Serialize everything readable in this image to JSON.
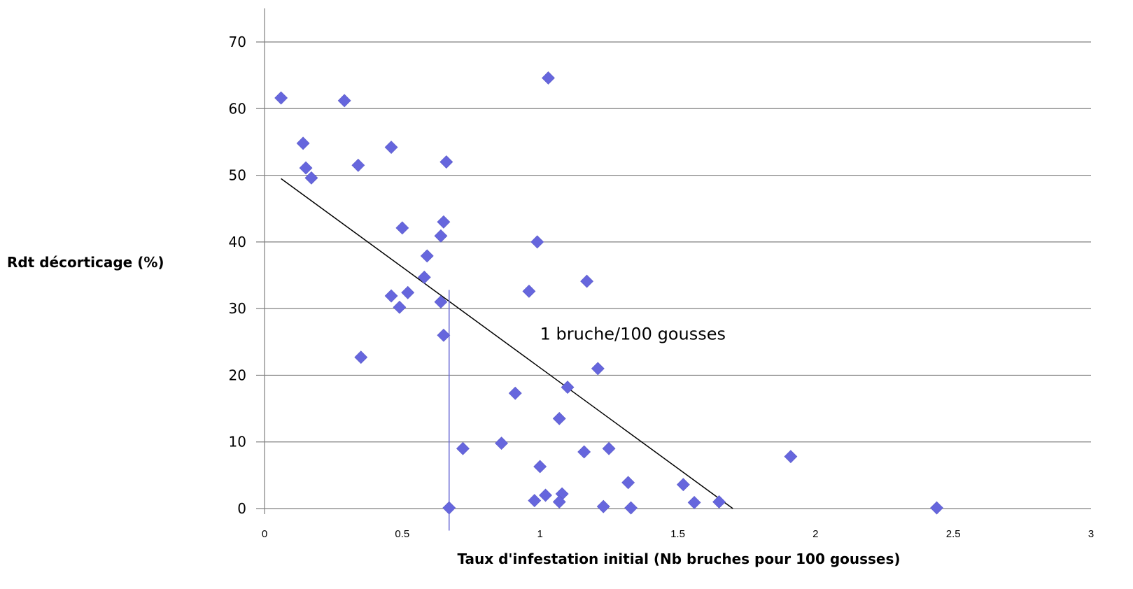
{
  "chart_data": {
    "type": "scatter",
    "title": "",
    "xlabel": "Taux d'infestation initial (Nb bruches pour 100 gousses)",
    "ylabel": "Rdt décorticage (%)",
    "xlim": [
      0,
      3
    ],
    "ylim": [
      0,
      70
    ],
    "x_ticks": [
      0,
      0.5,
      1,
      1.5,
      2,
      2.5,
      3
    ],
    "x_tick_labels": [
      "0",
      "0.5",
      "1",
      "1.5",
      "2",
      "2.5",
      "3"
    ],
    "y_ticks": [
      0,
      10,
      20,
      30,
      40,
      50,
      60,
      70
    ],
    "y_tick_labels": [
      "0",
      "10",
      "20",
      "30",
      "40",
      "50",
      "60",
      "70"
    ],
    "grid": "horizontal",
    "marker": "diamond",
    "colors": {
      "points": "#6666dd",
      "trendline": "#000000",
      "threshold_line": "#6b6bd6",
      "grid": "#808080"
    },
    "points": [
      {
        "x": 0.06,
        "y": 61.6
      },
      {
        "x": 0.29,
        "y": 61.2
      },
      {
        "x": 1.03,
        "y": 64.6
      },
      {
        "x": 0.14,
        "y": 54.8
      },
      {
        "x": 0.15,
        "y": 51.1
      },
      {
        "x": 0.17,
        "y": 49.6
      },
      {
        "x": 0.34,
        "y": 51.5
      },
      {
        "x": 0.46,
        "y": 54.2
      },
      {
        "x": 0.66,
        "y": 52.0
      },
      {
        "x": 0.5,
        "y": 42.1
      },
      {
        "x": 0.65,
        "y": 43.0
      },
      {
        "x": 0.64,
        "y": 40.9
      },
      {
        "x": 0.59,
        "y": 37.9
      },
      {
        "x": 0.99,
        "y": 40.0
      },
      {
        "x": 0.58,
        "y": 34.7
      },
      {
        "x": 0.96,
        "y": 32.6
      },
      {
        "x": 1.17,
        "y": 34.1
      },
      {
        "x": 0.46,
        "y": 31.9
      },
      {
        "x": 0.52,
        "y": 32.4
      },
      {
        "x": 0.49,
        "y": 30.2
      },
      {
        "x": 0.64,
        "y": 31.0
      },
      {
        "x": 0.65,
        "y": 26.0
      },
      {
        "x": 0.35,
        "y": 22.7
      },
      {
        "x": 1.21,
        "y": 21.0
      },
      {
        "x": 1.1,
        "y": 18.2
      },
      {
        "x": 0.91,
        "y": 17.3
      },
      {
        "x": 1.07,
        "y": 13.5
      },
      {
        "x": 0.72,
        "y": 9.0
      },
      {
        "x": 0.86,
        "y": 9.8
      },
      {
        "x": 1.16,
        "y": 8.5
      },
      {
        "x": 1.25,
        "y": 9.0
      },
      {
        "x": 1.91,
        "y": 7.8
      },
      {
        "x": 1.0,
        "y": 6.3
      },
      {
        "x": 1.32,
        "y": 3.9
      },
      {
        "x": 1.52,
        "y": 3.6
      },
      {
        "x": 0.98,
        "y": 1.2
      },
      {
        "x": 1.02,
        "y": 2.0
      },
      {
        "x": 1.08,
        "y": 2.2
      },
      {
        "x": 1.07,
        "y": 1.0
      },
      {
        "x": 1.56,
        "y": 0.9
      },
      {
        "x": 1.65,
        "y": 1.0
      },
      {
        "x": 0.67,
        "y": 0.1
      },
      {
        "x": 1.23,
        "y": 0.3
      },
      {
        "x": 1.33,
        "y": 0.1
      },
      {
        "x": 2.44,
        "y": 0.1
      }
    ],
    "trendline": {
      "x": [
        0.06,
        1.7
      ],
      "y": [
        49.5,
        0
      ]
    },
    "threshold_line": {
      "x": 0.67,
      "y_range": [
        -3.3,
        32.8
      ]
    },
    "annotation": {
      "text": "1 bruche/100 gousses",
      "x": 1.0,
      "y": 26.2
    }
  }
}
